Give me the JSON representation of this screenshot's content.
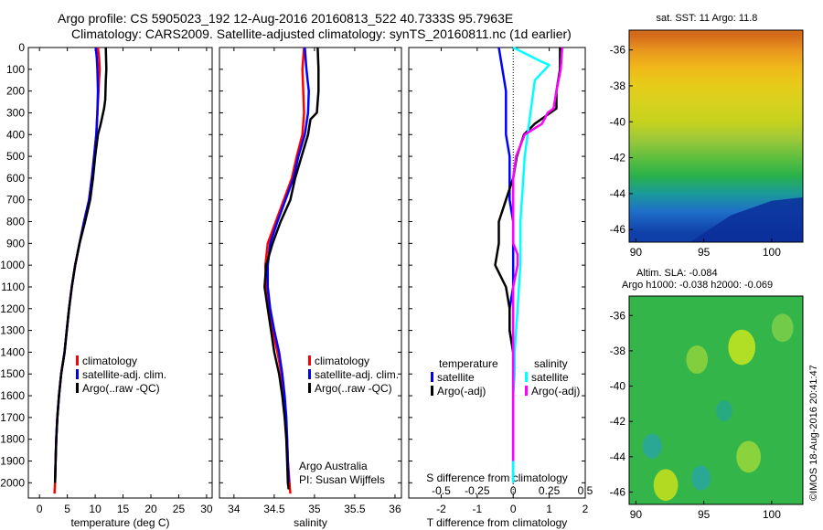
{
  "header": {
    "line1": "Argo profile: CS 5905023_192 12-Aug-2016 20160813_522 40.7333S 95.7963E",
    "line2": "Climatology: CARS2009. Satellite-adjusted climatology: synTS_20160811.nc (1d earlier)"
  },
  "side_note": "©IMOS 18-Aug-2016 20:41:47",
  "colors": {
    "climatology": "#ff0000",
    "satellite": "#0000ff",
    "argo": "#000000",
    "sal_satellite": "#00ffff",
    "sal_argo": "#ff00ff"
  },
  "chart_data": [
    {
      "type": "line",
      "id": "temperature",
      "xlabel": "temperature (deg C)",
      "xlim": [
        -2,
        31
      ],
      "xticks": [
        0,
        5,
        10,
        15,
        20,
        25,
        30
      ],
      "xtick_labels": [
        "0",
        "5",
        "10",
        "15",
        "20",
        "25",
        "30"
      ],
      "ylim": [
        0,
        2070
      ],
      "yticks": [
        0,
        100,
        200,
        300,
        400,
        500,
        600,
        700,
        800,
        900,
        1000,
        1100,
        1200,
        1300,
        1400,
        1500,
        1600,
        1700,
        1800,
        1900,
        2000
      ],
      "ytick_labels": [
        "0",
        "100",
        "200",
        "300",
        "400",
        "500",
        "600",
        "700",
        "800",
        "900",
        "1000",
        "1100",
        "1200",
        "1300",
        "1400",
        "1500",
        "1600",
        "1700",
        "1800",
        "1900",
        "2000"
      ],
      "y_reversed": true,
      "legend": [
        "climatology",
        "satellite-adj. clim.",
        "Argo(..raw -QC)"
      ],
      "series": [
        {
          "name": "climatology",
          "key": "climatology",
          "x": [
            10.5,
            10.7,
            10.8,
            10.6,
            10.4,
            10.2,
            9.8,
            9.4,
            8.9,
            8.0,
            7.2,
            6.4,
            5.8,
            5.3,
            4.9,
            4.5,
            3.9,
            3.5,
            3.2,
            3.0,
            2.9,
            2.8,
            2.7
          ],
          "y": [
            0,
            50,
            100,
            200,
            300,
            400,
            500,
            600,
            700,
            800,
            900,
            1000,
            1100,
            1200,
            1300,
            1400,
            1500,
            1600,
            1700,
            1800,
            1900,
            2000,
            2050
          ]
        },
        {
          "name": "satellite-adj. clim.",
          "key": "satellite",
          "x": [
            10.1,
            10.3,
            10.4,
            10.5,
            10.4,
            10.2,
            9.8,
            9.4,
            8.9,
            8.0,
            7.2,
            6.4,
            5.8,
            5.3,
            4.9,
            4.5,
            3.9,
            3.5,
            3.2,
            3.0,
            2.9,
            2.8
          ],
          "y": [
            0,
            50,
            100,
            200,
            300,
            400,
            500,
            600,
            700,
            800,
            900,
            1000,
            1100,
            1200,
            1300,
            1400,
            1500,
            1600,
            1700,
            1800,
            1900,
            2000
          ]
        },
        {
          "name": "Argo(..raw -QC)",
          "key": "argo",
          "x": [
            11.9,
            12.0,
            11.9,
            11.8,
            11.6,
            11.0,
            10.5,
            10.0,
            9.6,
            9.1,
            8.2,
            7.2,
            6.4,
            5.8,
            5.3,
            4.9,
            4.5,
            3.9,
            3.5,
            3.2,
            3.0,
            2.9,
            2.8
          ],
          "y": [
            0,
            100,
            150,
            240,
            280,
            350,
            400,
            500,
            600,
            700,
            800,
            900,
            1000,
            1100,
            1200,
            1300,
            1400,
            1500,
            1600,
            1700,
            1800,
            1900,
            2000
          ]
        }
      ]
    },
    {
      "type": "line",
      "id": "salinity",
      "xlabel": "salinity",
      "xlim": [
        33.82,
        36.08
      ],
      "xticks": [
        34,
        34.5,
        35,
        35.5,
        36
      ],
      "xtick_labels": [
        "34",
        "34.5",
        "35",
        "35.5",
        "36"
      ],
      "ylim": [
        0,
        2070
      ],
      "y_reversed": true,
      "legend": [
        "climatology",
        "satellite-adj. clim.",
        "Argo(..raw -QC)"
      ],
      "annotation": [
        "Argo Australia",
        "PI: Susan Wijffels"
      ],
      "series": [
        {
          "name": "climatology",
          "key": "climatology",
          "x": [
            34.87,
            34.86,
            34.85,
            34.86,
            34.87,
            34.85,
            34.78,
            34.72,
            34.62,
            34.52,
            34.42,
            34.39,
            34.4,
            34.43,
            34.48,
            34.54,
            34.59,
            34.62,
            34.64,
            34.66,
            34.67,
            34.69,
            34.7
          ],
          "y": [
            0,
            50,
            100,
            200,
            300,
            400,
            500,
            600,
            700,
            800,
            900,
            1000,
            1100,
            1200,
            1300,
            1400,
            1500,
            1600,
            1700,
            1800,
            1900,
            2000,
            2050
          ]
        },
        {
          "name": "satellite-adj. clim.",
          "key": "satellite",
          "x": [
            34.88,
            34.89,
            34.9,
            34.93,
            34.92,
            34.88,
            34.8,
            34.74,
            34.64,
            34.54,
            34.45,
            34.42,
            34.42,
            34.45,
            34.5,
            34.56,
            34.6,
            34.63,
            34.65,
            34.66,
            34.67,
            34.68
          ],
          "y": [
            0,
            50,
            100,
            200,
            300,
            400,
            500,
            600,
            700,
            800,
            900,
            1000,
            1100,
            1200,
            1300,
            1400,
            1500,
            1600,
            1700,
            1800,
            1900,
            2000
          ]
        },
        {
          "name": "Argo(..raw -QC)",
          "key": "argo",
          "x": [
            35.04,
            35.05,
            35.05,
            35.04,
            35.03,
            34.95,
            34.92,
            34.84,
            34.76,
            34.7,
            34.58,
            34.48,
            34.4,
            34.38,
            34.42,
            34.46,
            34.5,
            34.56,
            34.6,
            34.63,
            34.65,
            34.66,
            34.67,
            34.68
          ],
          "y": [
            0,
            100,
            200,
            250,
            300,
            330,
            400,
            500,
            600,
            700,
            800,
            900,
            1000,
            1100,
            1200,
            1300,
            1400,
            1500,
            1600,
            1700,
            1800,
            1900,
            2000,
            2030
          ]
        }
      ]
    },
    {
      "type": "line",
      "id": "differences",
      "xlabel": "T difference from climatology",
      "xlabel_top": "S difference from climatology",
      "xlim": [
        -2.9,
        2.0
      ],
      "xticks": [
        -2,
        -1,
        0,
        1,
        2
      ],
      "xtick_labels": [
        "-2",
        "-1",
        "0",
        "1",
        "2"
      ],
      "s_ticks": [
        "-0.5",
        "-0.25",
        "0",
        "0.25",
        "0.5"
      ],
      "ylim": [
        0,
        2070
      ],
      "y_reversed": true,
      "legend_left_title": "temperature",
      "legend_right_title": "salinity",
      "legend": [
        "satellite",
        "Argo(-adj)",
        "satellite",
        "Argo(-adj)"
      ],
      "series": [
        {
          "name": "satellite",
          "key": "satellite",
          "group": "temperature",
          "x": [
            -0.4,
            -0.3,
            -0.2,
            -0.2,
            -0.2,
            -0.1,
            -0.1,
            -0.1,
            0.0,
            0.0,
            0.0,
            0.0,
            -0.1,
            -0.1,
            0.0,
            0.0,
            0.0,
            0.0,
            0.0,
            0.0,
            0.0
          ],
          "y": [
            0,
            100,
            200,
            300,
            400,
            500,
            600,
            700,
            800,
            900,
            1000,
            1100,
            1200,
            1300,
            1400,
            1500,
            1600,
            1700,
            1800,
            1900,
            2000
          ]
        },
        {
          "name": "Argo(-adj)",
          "key": "argo",
          "group": "temperature",
          "x": [
            1.3,
            1.3,
            1.2,
            1.2,
            0.6,
            0.3,
            0.1,
            0.0,
            -0.2,
            -0.4,
            -0.4,
            -0.5,
            -0.2,
            -0.1,
            -0.1,
            0.0,
            0.0,
            0.0,
            0.0,
            0.0,
            0.0,
            0.0
          ],
          "y": [
            0,
            100,
            200,
            280,
            350,
            400,
            500,
            600,
            700,
            800,
            900,
            1000,
            1100,
            1200,
            1300,
            1400,
            1500,
            1600,
            1700,
            1800,
            1900,
            2000
          ]
        },
        {
          "name": "satellite",
          "key": "sal_satellite",
          "group": "salinity",
          "x": [
            0.0,
            0.18,
            0.25,
            0.15,
            0.12,
            0.1,
            0.08,
            0.07,
            0.06,
            0.05,
            0.05,
            0.05,
            0.04,
            0.03,
            0.02,
            0.01,
            0.01,
            0.0,
            0.0,
            0.0,
            0.0,
            0.0
          ],
          "y": [
            0,
            60,
            80,
            150,
            300,
            400,
            500,
            600,
            700,
            800,
            900,
            1000,
            1100,
            1200,
            1300,
            1400,
            1500,
            1600,
            1700,
            1800,
            1900,
            2000
          ]
        },
        {
          "name": "Argo(-adj)",
          "key": "sal_argo",
          "group": "salinity",
          "x": [
            0.34,
            0.33,
            0.3,
            0.28,
            0.24,
            0.2,
            0.08,
            0.02,
            0.0,
            0.0,
            0.0,
            0.0,
            0.03,
            0.03,
            0.0,
            0.0,
            0.0,
            0.0,
            0.0,
            0.0,
            0.0,
            0.0,
            0.0
          ],
          "y": [
            0,
            100,
            200,
            280,
            300,
            350,
            400,
            500,
            600,
            700,
            800,
            900,
            950,
            1000,
            1100,
            1200,
            1300,
            1400,
            1500,
            1600,
            1700,
            1800,
            1900
          ]
        }
      ]
    },
    {
      "type": "heatmap",
      "id": "sst_map",
      "title": "sat. SST: 11 Argo: 11.8",
      "xticks": [
        "90",
        "95",
        "100"
      ],
      "yticks": [
        "-36",
        "-38",
        "-40",
        "-42",
        "-44",
        "-46"
      ],
      "xlim": [
        89.5,
        102.3
      ],
      "ylim": [
        -46.7,
        -34.9
      ],
      "bands": [
        {
          "lat": -35.2,
          "color": "#d46b1a"
        },
        {
          "lat": -36.0,
          "color": "#e8951e"
        },
        {
          "lat": -37.0,
          "color": "#f0b91a"
        },
        {
          "lat": -38.0,
          "color": "#e6cc1a"
        },
        {
          "lat": -39.0,
          "color": "#d6d21e"
        },
        {
          "lat": -40.0,
          "color": "#c5d21e"
        },
        {
          "lat": -41.0,
          "color": "#9bc83a"
        },
        {
          "lat": -42.0,
          "color": "#5fbf3e"
        },
        {
          "lat": -43.0,
          "color": "#29b24a"
        },
        {
          "lat": -44.0,
          "color": "#1a9a9a"
        },
        {
          "lat": -45.0,
          "color": "#1f6fc8"
        },
        {
          "lat": -46.2,
          "color": "#0f3fa8"
        }
      ]
    },
    {
      "type": "heatmap",
      "id": "sla_map",
      "title1": "Altim. SLA: -0.084",
      "title2": "Argo h1000: -0.038 h2000: -0.069",
      "xticks": [
        "90",
        "95",
        "100"
      ],
      "yticks": [
        "-36",
        "-38",
        "-40",
        "-42",
        "-44",
        "-46"
      ],
      "xlim": [
        89.5,
        102.3
      ],
      "ylim": [
        -46.7,
        -34.9
      ],
      "background": "#33b54a",
      "blobs": [
        {
          "lon": 97.8,
          "lat": -37.8,
          "r": 1.0,
          "color": "#c8e61e"
        },
        {
          "lon": 94.5,
          "lat": -38.5,
          "r": 0.8,
          "color": "#8fd23c"
        },
        {
          "lon": 92.2,
          "lat": -45.6,
          "r": 0.9,
          "color": "#c9e01c"
        },
        {
          "lon": 98.3,
          "lat": -44.0,
          "r": 0.9,
          "color": "#9ad83a"
        },
        {
          "lon": 91.2,
          "lat": -43.4,
          "r": 0.7,
          "color": "#2aa6a0"
        },
        {
          "lon": 94.8,
          "lat": -45.2,
          "r": 0.7,
          "color": "#2aa6a0"
        },
        {
          "lon": 100.8,
          "lat": -36.7,
          "r": 0.8,
          "color": "#7ed04a"
        },
        {
          "lon": 96.5,
          "lat": -41.4,
          "r": 0.6,
          "color": "#26a88a"
        }
      ]
    }
  ]
}
